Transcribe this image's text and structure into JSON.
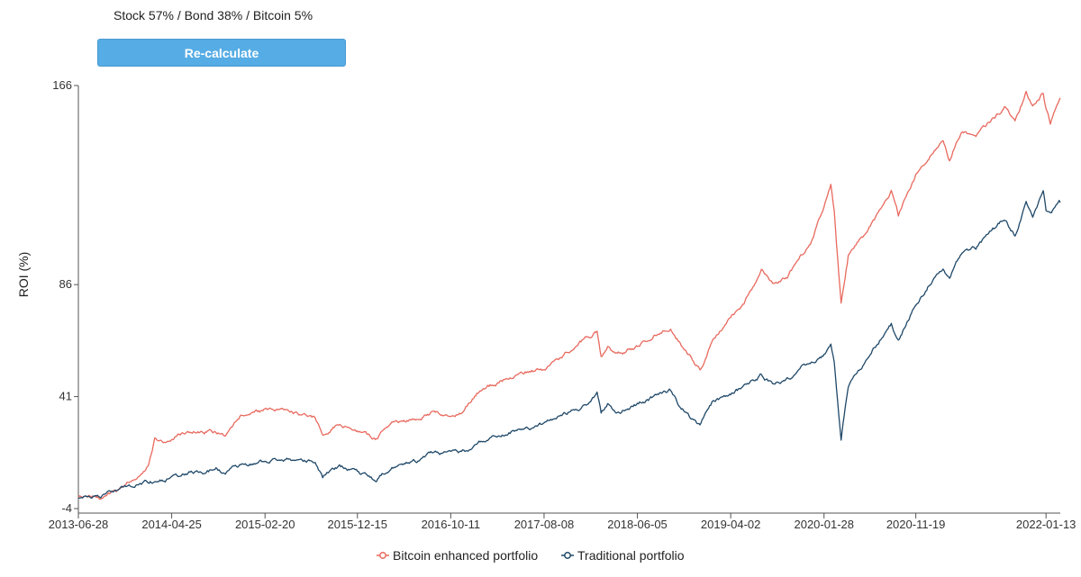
{
  "allocation_label": "Stock 57% / Bond 38% / Bitcoin 5%",
  "recalculate_label": "Re-calculate",
  "chart_data": {
    "type": "line",
    "title": "",
    "ylabel": "ROI (%)",
    "xlabel": "",
    "ylim": [
      -4,
      166
    ],
    "y_ticks": [
      -4,
      41,
      86,
      166
    ],
    "x_ticks": [
      "2013-06-28",
      "2014-04-25",
      "2015-02-20",
      "2015-12-15",
      "2016-10-11",
      "2017-08-08",
      "2018-06-05",
      "2019-04-02",
      "2020-01-28",
      "2020-11-19",
      "2022-01-13"
    ],
    "x_range": [
      "2013-06-28",
      "2022-02-28"
    ],
    "legend_position": "bottom-center",
    "grid": false,
    "series": [
      {
        "name": "Bitcoin enhanced portfolio",
        "color": "#e8695e",
        "points": [
          [
            "2013-06-28",
            0
          ],
          [
            "2013-08-01",
            1
          ],
          [
            "2013-09-15",
            1
          ],
          [
            "2013-11-01",
            3
          ],
          [
            "2013-12-05",
            7
          ],
          [
            "2014-01-10",
            9
          ],
          [
            "2014-02-10",
            14
          ],
          [
            "2014-03-01",
            24
          ],
          [
            "2014-04-01",
            23
          ],
          [
            "2014-05-15",
            26
          ],
          [
            "2014-07-15",
            27
          ],
          [
            "2014-09-15",
            27
          ],
          [
            "2014-10-15",
            26
          ],
          [
            "2014-12-01",
            33
          ],
          [
            "2015-02-20",
            35
          ],
          [
            "2015-05-01",
            35
          ],
          [
            "2015-08-01",
            33
          ],
          [
            "2015-08-25",
            26
          ],
          [
            "2015-10-15",
            30
          ],
          [
            "2015-12-15",
            27
          ],
          [
            "2016-02-11",
            24
          ],
          [
            "2016-04-01",
            30
          ],
          [
            "2016-06-27",
            32
          ],
          [
            "2016-08-15",
            35
          ],
          [
            "2016-10-11",
            34
          ],
          [
            "2016-11-15",
            34
          ],
          [
            "2017-01-10",
            43
          ],
          [
            "2017-03-01",
            46
          ],
          [
            "2017-05-01",
            49
          ],
          [
            "2017-06-15",
            51
          ],
          [
            "2017-08-08",
            52
          ],
          [
            "2017-10-01",
            57
          ],
          [
            "2017-12-15",
            64
          ],
          [
            "2018-01-26",
            67
          ],
          [
            "2018-02-08",
            57
          ],
          [
            "2018-03-01",
            61
          ],
          [
            "2018-04-01",
            58
          ],
          [
            "2018-06-05",
            61
          ],
          [
            "2018-08-01",
            66
          ],
          [
            "2018-09-20",
            69
          ],
          [
            "2018-10-25",
            62
          ],
          [
            "2018-12-24",
            52
          ],
          [
            "2019-01-31",
            63
          ],
          [
            "2019-04-02",
            73
          ],
          [
            "2019-05-15",
            79
          ],
          [
            "2019-07-10",
            92
          ],
          [
            "2019-08-15",
            86
          ],
          [
            "2019-10-01",
            89
          ],
          [
            "2019-12-15",
            103
          ],
          [
            "2020-01-28",
            118
          ],
          [
            "2020-02-19",
            126
          ],
          [
            "2020-03-01",
            116
          ],
          [
            "2020-03-23",
            78
          ],
          [
            "2020-04-15",
            98
          ],
          [
            "2020-06-08",
            106
          ],
          [
            "2020-07-15",
            113
          ],
          [
            "2020-09-01",
            124
          ],
          [
            "2020-09-24",
            114
          ],
          [
            "2020-11-19",
            130
          ],
          [
            "2020-12-31",
            137
          ],
          [
            "2021-02-15",
            145
          ],
          [
            "2021-03-08",
            137
          ],
          [
            "2021-04-15",
            148
          ],
          [
            "2021-06-01",
            145
          ],
          [
            "2021-07-15",
            151
          ],
          [
            "2021-09-01",
            157
          ],
          [
            "2021-10-05",
            151
          ],
          [
            "2021-11-10",
            164
          ],
          [
            "2021-12-01",
            158
          ],
          [
            "2022-01-04",
            163
          ],
          [
            "2022-01-13",
            157
          ],
          [
            "2022-01-27",
            151
          ],
          [
            "2022-02-28",
            161
          ]
        ]
      },
      {
        "name": "Traditional portfolio",
        "color": "#1f4868",
        "points": [
          [
            "2013-06-28",
            0
          ],
          [
            "2013-08-01",
            1
          ],
          [
            "2013-09-15",
            2
          ],
          [
            "2013-11-01",
            4
          ],
          [
            "2013-12-05",
            5
          ],
          [
            "2014-01-10",
            6
          ],
          [
            "2014-03-01",
            7
          ],
          [
            "2014-05-15",
            9
          ],
          [
            "2014-07-15",
            11
          ],
          [
            "2014-09-15",
            12
          ],
          [
            "2014-10-15",
            10
          ],
          [
            "2014-12-01",
            13
          ],
          [
            "2015-02-20",
            15
          ],
          [
            "2015-05-01",
            16
          ],
          [
            "2015-08-01",
            15
          ],
          [
            "2015-08-25",
            9
          ],
          [
            "2015-10-15",
            13
          ],
          [
            "2015-12-15",
            11
          ],
          [
            "2016-02-11",
            7
          ],
          [
            "2016-04-01",
            13
          ],
          [
            "2016-06-27",
            15
          ],
          [
            "2016-08-15",
            18
          ],
          [
            "2016-10-11",
            18
          ],
          [
            "2016-11-15",
            18
          ],
          [
            "2017-01-10",
            22
          ],
          [
            "2017-03-01",
            25
          ],
          [
            "2017-05-01",
            27
          ],
          [
            "2017-08-08",
            30
          ],
          [
            "2017-10-01",
            33
          ],
          [
            "2017-12-15",
            37
          ],
          [
            "2018-01-26",
            42
          ],
          [
            "2018-02-08",
            34
          ],
          [
            "2018-03-01",
            38
          ],
          [
            "2018-04-01",
            35
          ],
          [
            "2018-06-05",
            38
          ],
          [
            "2018-08-01",
            41
          ],
          [
            "2018-09-20",
            43
          ],
          [
            "2018-10-25",
            36
          ],
          [
            "2018-12-24",
            29
          ],
          [
            "2019-01-31",
            38
          ],
          [
            "2019-04-02",
            42
          ],
          [
            "2019-05-15",
            45
          ],
          [
            "2019-07-10",
            50
          ],
          [
            "2019-08-15",
            46
          ],
          [
            "2019-10-01",
            48
          ],
          [
            "2019-12-15",
            55
          ],
          [
            "2020-01-28",
            58
          ],
          [
            "2020-02-19",
            61
          ],
          [
            "2020-03-01",
            55
          ],
          [
            "2020-03-23",
            25
          ],
          [
            "2020-04-15",
            45
          ],
          [
            "2020-06-08",
            55
          ],
          [
            "2020-07-15",
            62
          ],
          [
            "2020-09-01",
            70
          ],
          [
            "2020-09-24",
            63
          ],
          [
            "2020-11-19",
            78
          ],
          [
            "2020-12-31",
            86
          ],
          [
            "2021-02-15",
            93
          ],
          [
            "2021-03-08",
            89
          ],
          [
            "2021-04-15",
            99
          ],
          [
            "2021-06-01",
            101
          ],
          [
            "2021-07-15",
            107
          ],
          [
            "2021-09-01",
            112
          ],
          [
            "2021-10-05",
            106
          ],
          [
            "2021-11-10",
            119
          ],
          [
            "2021-12-01",
            112
          ],
          [
            "2022-01-04",
            124
          ],
          [
            "2022-01-13",
            116
          ],
          [
            "2022-01-27",
            115
          ],
          [
            "2022-02-28",
            119
          ]
        ]
      }
    ]
  }
}
